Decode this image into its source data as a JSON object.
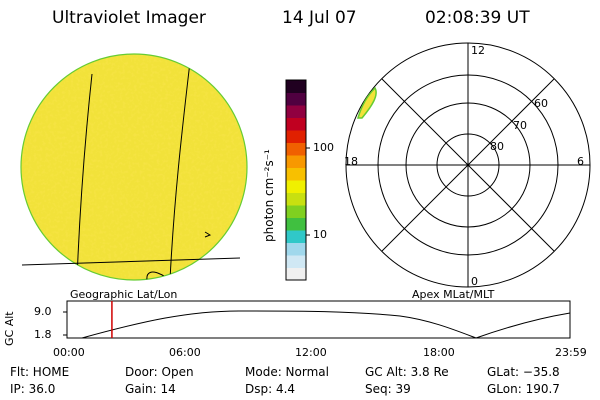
{
  "header": {
    "instrument": "Ultraviolet Imager",
    "date": "14 Jul 07",
    "time": "02:08:39 UT"
  },
  "colorbar": {
    "unit_label": "photon cm⁻²s⁻¹",
    "tick_100": "100",
    "tick_10": "10",
    "colors": [
      "#f0f0f0",
      "#d0e8f4",
      "#a0d8ec",
      "#30c8c8",
      "#40c040",
      "#80d020",
      "#c8e010",
      "#f0f000",
      "#f8c000",
      "#f89800",
      "#f06000",
      "#e02000",
      "#c00020",
      "#900040",
      "#500040",
      "#200020"
    ]
  },
  "earth_panel": {
    "caption": "Geographic Lat/Lon",
    "fill_color": "#f2e23a",
    "edge_color": "#66cc33"
  },
  "polar_plot": {
    "caption": "Apex MLat/MLT",
    "mlt_top": "12",
    "mlt_right": "6",
    "mlt_bottom": "0",
    "mlt_left": "18",
    "lat_60": "60",
    "lat_70": "70",
    "lat_80": "80"
  },
  "orbit_plot": {
    "ylabel": "GC Alt",
    "ytick_high": "9.0",
    "ytick_low": "1.8",
    "xticks": [
      "00:00",
      "06:00",
      "12:00",
      "18:00",
      "23:59"
    ],
    "current_time_fraction": 0.0893,
    "marker_color": "#d00000"
  },
  "status": {
    "flt": "Flt: HOME",
    "ip": "IP: 36.0",
    "door": "Door: Open",
    "gain": "Gain: 14",
    "mode": "Mode: Normal",
    "dsp": "Dsp:    4.4",
    "gcalt": "GC Alt: 3.8 Re",
    "seq": "Seq: 39",
    "glat": "GLat: −35.8",
    "glon": "GLon: 190.7"
  }
}
